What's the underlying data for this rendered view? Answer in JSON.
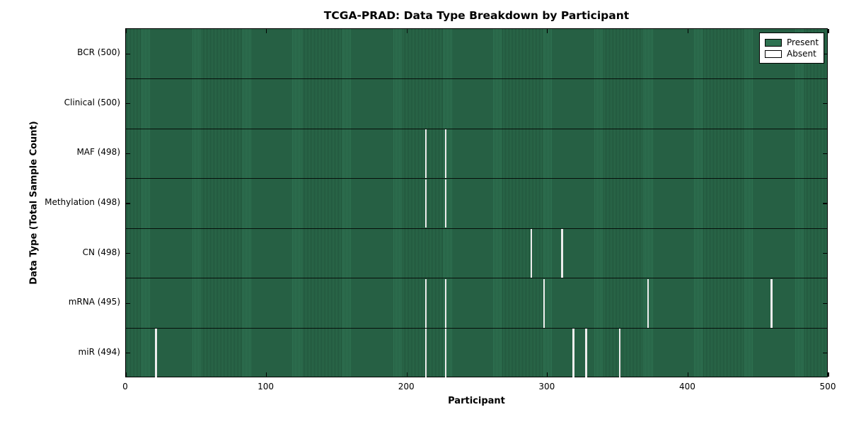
{
  "title": "TCGA-PRAD: Data Type Breakdown by Participant",
  "xlabel": "Participant",
  "ylabel": "Data Type (Total Sample Count)",
  "legend": {
    "present_label": "Present",
    "absent_label": "Absent"
  },
  "colors": {
    "present": "#2e7251",
    "present_stripe": "#1e4e36",
    "absent_gap": "#ededed",
    "legend_absent": "#ffffff",
    "border": "#000000"
  },
  "chart_data": {
    "type": "heatmap",
    "title": "TCGA-PRAD: Data Type Breakdown by Participant",
    "xlabel": "Participant",
    "ylabel": "Data Type (Total Sample Count)",
    "x_range": [
      0,
      500
    ],
    "x_ticks": [
      0,
      100,
      200,
      300,
      400,
      500
    ],
    "legend_entries": [
      {
        "label": "Present",
        "color": "#2e7251"
      },
      {
        "label": "Absent",
        "color": "#ffffff"
      }
    ],
    "rows": [
      {
        "label": "BCR (500)",
        "data_type": "BCR",
        "total": 500,
        "absent_participants": []
      },
      {
        "label": "Clinical (500)",
        "data_type": "Clinical",
        "total": 500,
        "absent_participants": []
      },
      {
        "label": "MAF (498)",
        "data_type": "MAF",
        "total": 498,
        "absent_participants": [
          213,
          227
        ]
      },
      {
        "label": "Methylation (498)",
        "data_type": "Methylation",
        "total": 498,
        "absent_participants": [
          213,
          227
        ]
      },
      {
        "label": "CN (498)",
        "data_type": "CN",
        "total": 498,
        "absent_participants": [
          288,
          310
        ]
      },
      {
        "label": "mRNA (495)",
        "data_type": "mRNA",
        "total": 495,
        "absent_participants": [
          213,
          227,
          297,
          371,
          459
        ]
      },
      {
        "label": "miR (494)",
        "data_type": "miR",
        "total": 494,
        "absent_participants": [
          21,
          213,
          227,
          318,
          327,
          351
        ]
      }
    ]
  }
}
